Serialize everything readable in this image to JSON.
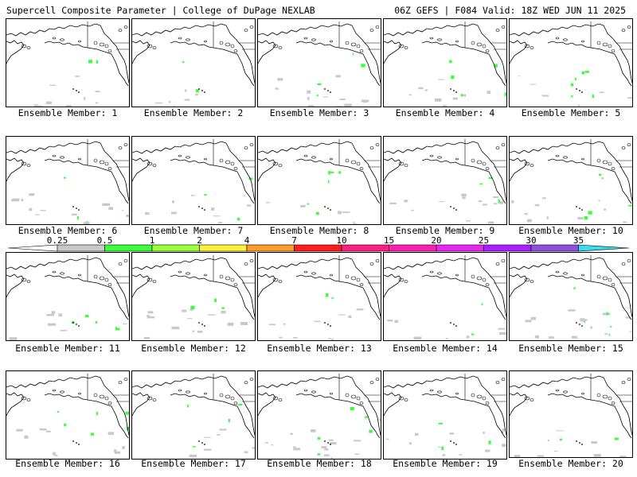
{
  "header": {
    "left": "Supercell Composite Parameter | College of DuPage NEXLAB",
    "right": "06Z GEFS | F084 Valid: 18Z WED JUN 11 2025"
  },
  "colorbar": {
    "labels": [
      "0.25",
      "0.5",
      "1",
      "2",
      "4",
      "7",
      "10",
      "15",
      "20",
      "25",
      "30",
      "35"
    ],
    "colors": [
      "#c8c8c8",
      "#3cff3c",
      "#9bff3c",
      "#fff03c",
      "#ff9b28",
      "#ff1e1e",
      "#ff1e82",
      "#ff1eb4",
      "#e628f0",
      "#aa1eff",
      "#8c50dc",
      "#a064e6",
      "#3cdcf0"
    ]
  },
  "panels": [
    {
      "member": "Ensemble Member: 1"
    },
    {
      "member": "Ensemble Member: 2"
    },
    {
      "member": "Ensemble Member: 3"
    },
    {
      "member": "Ensemble Member: 4"
    },
    {
      "member": "Ensemble Member: 5"
    },
    {
      "member": "Ensemble Member: 6"
    },
    {
      "member": "Ensemble Member: 7"
    },
    {
      "member": "Ensemble Member: 8"
    },
    {
      "member": "Ensemble Member: 9"
    },
    {
      "member": "Ensemble Member: 10"
    },
    {
      "member": "Ensemble Member: 11"
    },
    {
      "member": "Ensemble Member: 12"
    },
    {
      "member": "Ensemble Member: 13"
    },
    {
      "member": "Ensemble Member: 14"
    },
    {
      "member": "Ensemble Member: 15"
    },
    {
      "member": "Ensemble Member: 16"
    },
    {
      "member": "Ensemble Member: 17"
    },
    {
      "member": "Ensemble Member: 18"
    },
    {
      "member": "Ensemble Member: 19"
    },
    {
      "member": "Ensemble Member: 20"
    }
  ],
  "map_colors": {
    "coast": "#000000",
    "low_values": "#c8c8c8",
    "moderate_values": "#3cff3c"
  }
}
